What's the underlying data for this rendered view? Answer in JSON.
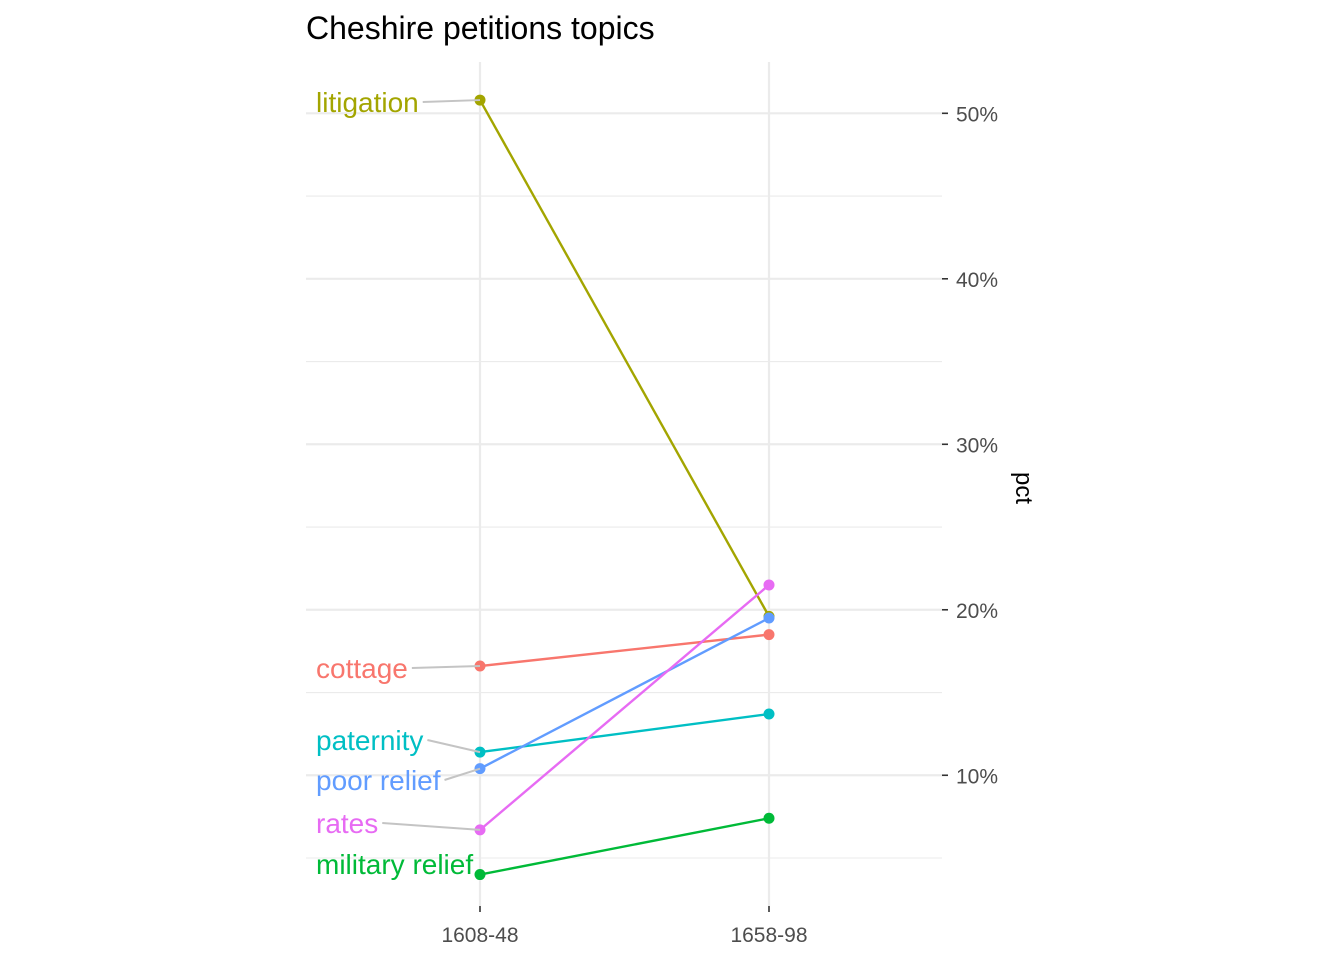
{
  "chart_data": {
    "type": "line",
    "title": "Cheshire petitions topics",
    "xlabel": "",
    "ylabel": "pct",
    "categories": [
      "1608-48",
      "1658-98"
    ],
    "y_axis_position": "right",
    "y_tick_values": [
      10,
      20,
      30,
      40,
      50
    ],
    "y_tick_labels": [
      "10%",
      "20%",
      "30%",
      "40%",
      "50%"
    ],
    "ylim": [
      2.1,
      53.1
    ],
    "grid": true,
    "legend": "none (direct labels at left)",
    "series": [
      {
        "name": "litigation",
        "values": [
          50.8,
          19.6
        ],
        "color": "#A3A500"
      },
      {
        "name": "cottage",
        "values": [
          16.6,
          18.5
        ],
        "color": "#F8766D"
      },
      {
        "name": "paternity",
        "values": [
          11.4,
          13.7
        ],
        "color": "#00BFC4"
      },
      {
        "name": "poor relief",
        "values": [
          10.4,
          19.5
        ],
        "color": "#619CFF"
      },
      {
        "name": "rates",
        "values": [
          6.7,
          21.5
        ],
        "color": "#E76BF3"
      },
      {
        "name": "military relief",
        "values": [
          4.0,
          7.4
        ],
        "color": "#00BA38"
      }
    ]
  }
}
